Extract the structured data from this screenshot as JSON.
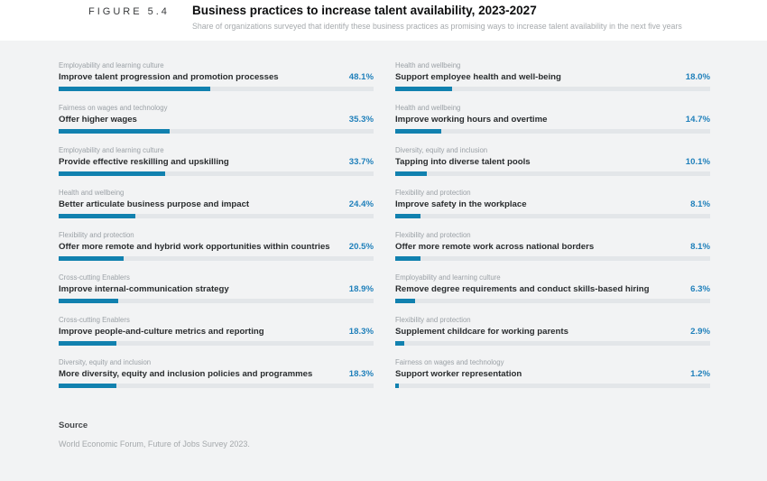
{
  "figure_label": "FIGURE 5.4",
  "header": {
    "title": "Business practices to increase talent availability, 2023-2027",
    "subtitle": "Share of organizations surveyed that identify these business practices as promising ways to increase talent availability in the next five years"
  },
  "source": {
    "heading": "Source",
    "text": "World Economic Forum, Future of Jobs Survey 2023."
  },
  "colors": {
    "bar": "#1181af",
    "value_text": "#2080bb",
    "track": "#e3e6e9",
    "content_background": "#f2f3f4",
    "header_background": "#ffffff"
  },
  "chart_data": {
    "type": "bar",
    "orientation": "horizontal",
    "unit": "%",
    "xlim": [
      0,
      100
    ],
    "grid": false,
    "legend": false,
    "title": "Business practices to increase talent availability, 2023-2027",
    "subtitle": "Share of organizations surveyed that identify these business practices as promising ways to increase talent availability in the next five years",
    "columns": [
      {
        "items": [
          {
            "category": "Employability and learning culture",
            "label": "Improve talent progression and promotion processes",
            "value": 48.1,
            "display": "48.1%"
          },
          {
            "category": "Fairness on wages and technology",
            "label": "Offer higher wages",
            "value": 35.3,
            "display": "35.3%"
          },
          {
            "category": "Employability and learning culture",
            "label": "Provide effective reskilling and upskilling",
            "value": 33.7,
            "display": "33.7%"
          },
          {
            "category": "Health and wellbeing",
            "label": "Better articulate business purpose and impact",
            "value": 24.4,
            "display": "24.4%"
          },
          {
            "category": "Flexibility and protection",
            "label": "Offer more remote and hybrid work opportunities within countries",
            "value": 20.5,
            "display": "20.5%"
          },
          {
            "category": "Cross-cutting Enablers",
            "label": "Improve internal-communication strategy",
            "value": 18.9,
            "display": "18.9%"
          },
          {
            "category": "Cross-cutting Enablers",
            "label": "Improve people-and-culture metrics and reporting",
            "value": 18.3,
            "display": "18.3%"
          },
          {
            "category": "Diversity, equity and inclusion",
            "label": "More diversity, equity and inclusion policies and programmes",
            "value": 18.3,
            "display": "18.3%"
          }
        ]
      },
      {
        "items": [
          {
            "category": "Health and wellbeing",
            "label": "Support employee health and well-being",
            "value": 18.0,
            "display": "18.0%"
          },
          {
            "category": "Health and wellbeing",
            "label": "Improve working hours and overtime",
            "value": 14.7,
            "display": "14.7%"
          },
          {
            "category": "Diversity, equity and inclusion",
            "label": "Tapping into diverse talent pools",
            "value": 10.1,
            "display": "10.1%"
          },
          {
            "category": "Flexibility and protection",
            "label": "Improve safety in the workplace",
            "value": 8.1,
            "display": "8.1%"
          },
          {
            "category": "Flexibility and protection",
            "label": "Offer more remote work across national borders",
            "value": 8.1,
            "display": "8.1%"
          },
          {
            "category": "Employability and learning culture",
            "label": "Remove degree requirements and conduct skills-based hiring",
            "value": 6.3,
            "display": "6.3%"
          },
          {
            "category": "Flexibility and protection",
            "label": "Supplement childcare for working parents",
            "value": 2.9,
            "display": "2.9%"
          },
          {
            "category": "Fairness on wages and technology",
            "label": "Support worker representation",
            "value": 1.2,
            "display": "1.2%"
          }
        ]
      }
    ]
  }
}
